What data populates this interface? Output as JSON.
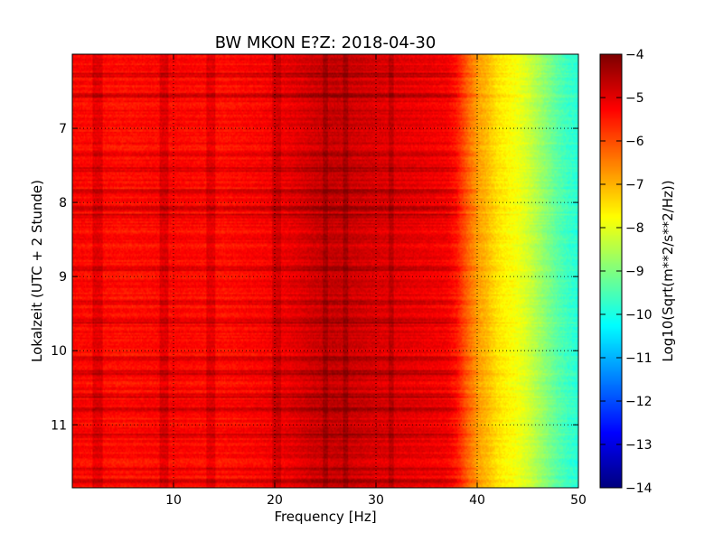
{
  "chart_data": {
    "type": "heatmap",
    "title": "BW MKON E?Z: 2018-04-30",
    "xlabel": "Frequency [Hz]",
    "ylabel": "Lokalzeit (UTC + 2 Stunde)",
    "colorbar_label": "Log10(Sqrt(m**2/s**2/Hz))",
    "colormap": "jet",
    "xlim": [
      0,
      50
    ],
    "ylim": [
      6.0,
      11.85
    ],
    "y_inverted": true,
    "x_ticks": [
      10,
      20,
      30,
      40,
      50
    ],
    "x_tick_labels": [
      "10",
      "20",
      "30",
      "40",
      "50"
    ],
    "y_ticks": [
      7,
      8,
      9,
      10,
      11
    ],
    "y_tick_labels": [
      "7",
      "8",
      "9",
      "10",
      "11"
    ],
    "colorbar_range": [
      -14,
      -4
    ],
    "colorbar_ticks": [
      -4,
      -5,
      -6,
      -7,
      -8,
      -9,
      -10,
      -11,
      -12,
      -13,
      -14
    ],
    "colorbar_tick_labels": [
      "−4",
      "−5",
      "−6",
      "−7",
      "−8",
      "−9",
      "−10",
      "−11",
      "−12",
      "−13",
      "−14"
    ],
    "grid": "dotted",
    "frequency_profile": {
      "freq_hz": [
        0,
        5,
        10,
        15,
        20,
        24,
        26,
        28,
        30,
        32,
        35,
        37,
        38,
        39,
        40,
        41,
        42,
        43,
        44,
        45,
        46,
        47,
        48,
        49,
        50
      ],
      "level": [
        -5.3,
        -5.4,
        -5.3,
        -5.4,
        -5.2,
        -4.8,
        -4.7,
        -4.8,
        -4.9,
        -5.0,
        -5.1,
        -5.2,
        -5.5,
        -6.2,
        -6.8,
        -7.1,
        -7.5,
        -7.7,
        -7.9,
        -8.2,
        -8.6,
        -9.0,
        -9.4,
        -9.7,
        -9.9
      ]
    },
    "vertical_bands_hz": [
      2.3,
      2.7,
      8.9,
      9.3,
      13.5,
      13.9,
      20.0,
      20.4,
      25.0,
      27.0,
      31.5
    ],
    "horizontal_events_hours": [
      6.28,
      6.55,
      7.35,
      7.55,
      7.85,
      8.08,
      8.18,
      8.9,
      9.35,
      9.6,
      10.1,
      10.3,
      10.6,
      10.8,
      11.15,
      11.6,
      11.75
    ]
  }
}
